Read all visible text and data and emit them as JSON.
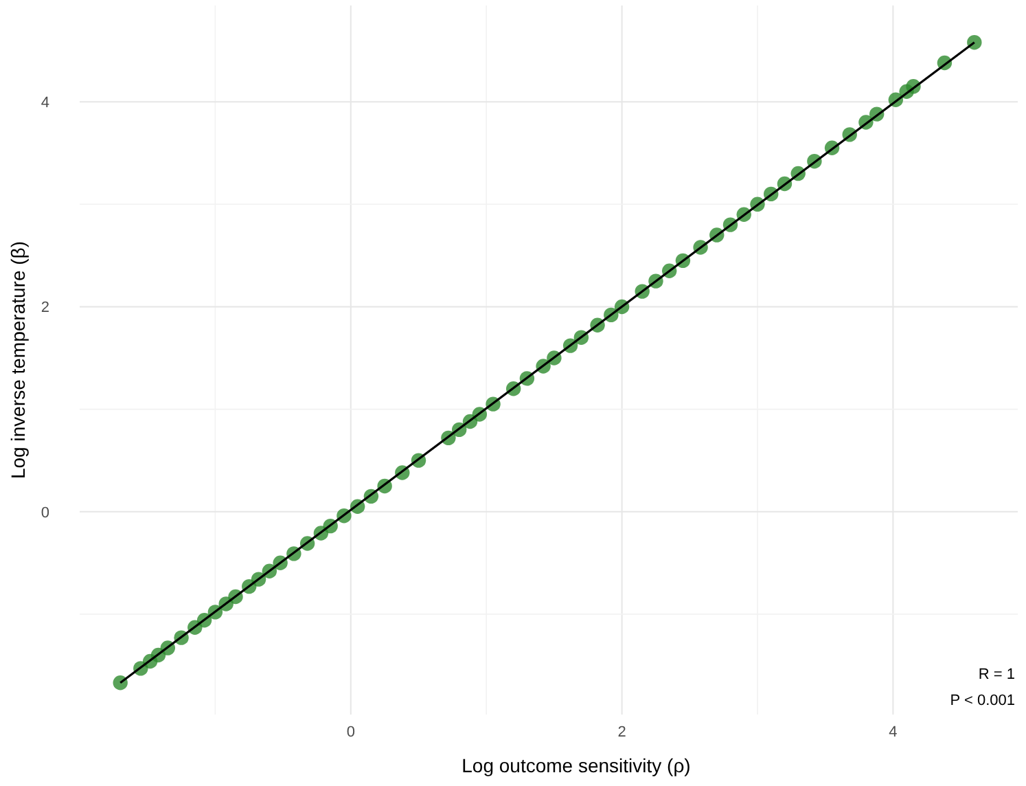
{
  "chart_data": {
    "type": "scatter",
    "xlabel": "Log outcome sensitivity (ρ)",
    "ylabel": "Log inverse temperature (β)",
    "xlim": [
      -2,
      4.92
    ],
    "ylim": [
      -1.98,
      4.94
    ],
    "xticks": [
      {
        "value": -1,
        "label": null
      },
      0,
      {
        "value": 1,
        "label": null
      },
      2,
      {
        "value": 3,
        "label": null
      },
      4
    ],
    "yticks": [
      {
        "value": -1,
        "label": null
      },
      0,
      {
        "value": 1,
        "label": null
      },
      2,
      {
        "value": 3,
        "label": null
      },
      4
    ],
    "grid": true,
    "annotations": [
      "R = 1",
      "P < 0.001"
    ],
    "series": [
      {
        "marker": "circle",
        "color": "#2e8b2e",
        "x": [
          -1.7,
          -1.55,
          -1.48,
          -1.42,
          -1.35,
          -1.25,
          -1.15,
          -1.08,
          -1.0,
          -0.92,
          -0.85,
          -0.75,
          -0.68,
          -0.6,
          -0.52,
          -0.42,
          -0.32,
          -0.22,
          -0.15,
          -0.05,
          0.05,
          0.15,
          0.25,
          0.38,
          0.5,
          0.72,
          0.8,
          0.88,
          0.95,
          1.05,
          1.2,
          1.3,
          1.42,
          1.5,
          1.62,
          1.7,
          1.82,
          1.92,
          2.0,
          2.15,
          2.25,
          2.35,
          2.45,
          2.58,
          2.7,
          2.8,
          2.9,
          3.0,
          3.1,
          3.2,
          3.3,
          3.42,
          3.55,
          3.68,
          3.8,
          3.88,
          4.02,
          4.1,
          4.15,
          4.38,
          4.6
        ],
        "values": [
          -1.67,
          -1.53,
          -1.46,
          -1.4,
          -1.33,
          -1.23,
          -1.13,
          -1.06,
          -0.98,
          -0.9,
          -0.83,
          -0.73,
          -0.66,
          -0.58,
          -0.5,
          -0.41,
          -0.31,
          -0.21,
          -0.14,
          -0.04,
          0.05,
          0.15,
          0.25,
          0.38,
          0.5,
          0.72,
          0.8,
          0.88,
          0.95,
          1.05,
          1.2,
          1.3,
          1.42,
          1.5,
          1.62,
          1.7,
          1.82,
          1.92,
          2.0,
          2.15,
          2.25,
          2.35,
          2.45,
          2.58,
          2.7,
          2.8,
          2.9,
          3.0,
          3.1,
          3.2,
          3.3,
          3.42,
          3.55,
          3.68,
          3.8,
          3.88,
          4.02,
          4.1,
          4.15,
          4.38,
          4.58
        ]
      },
      {
        "type": "line",
        "color": "#000000",
        "x": [
          -1.7,
          4.6
        ],
        "values": [
          -1.67,
          4.58
        ]
      }
    ]
  }
}
